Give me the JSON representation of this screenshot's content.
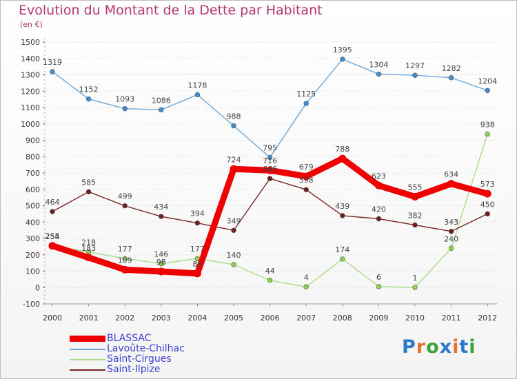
{
  "header": {
    "title": "Evolution du Montant de la Dette par Habitant",
    "subtitle": "(en €)"
  },
  "logo": {
    "text": "Proxiti",
    "colors": [
      "#2a7ac9",
      "#e7712a",
      "#3aa23a",
      "#2a7ac9",
      "#e7712a",
      "#2a7ac9",
      "#3aa23a"
    ]
  },
  "chart_data": {
    "type": "line",
    "title": "Evolution du Montant de la Dette par Habitant",
    "subtitle": "(en €)",
    "xlabel": "",
    "ylabel": "",
    "x": [
      "2000",
      "2001",
      "2002",
      "2003",
      "2004",
      "2005",
      "2006",
      "2007",
      "2008",
      "2009",
      "2010",
      "2011",
      "2012"
    ],
    "ylim": [
      -100,
      1500
    ],
    "yticks": [
      -100,
      0,
      100,
      200,
      300,
      400,
      500,
      600,
      700,
      800,
      900,
      1000,
      1100,
      1200,
      1300,
      1400,
      1500
    ],
    "grid": "horizontal",
    "legend_position": "bottom-left",
    "series": [
      {
        "name": "BLASSAC",
        "color": "#ee0000",
        "emphasis": true,
        "values": [
          255,
          183,
          109,
          98,
          86,
          724,
          716,
          679,
          788,
          623,
          555,
          634,
          573
        ]
      },
      {
        "name": "Lavoûte-Chilhac",
        "color": "#6fa6d6",
        "point_color": "#3f8fd2",
        "values": [
          1319,
          1152,
          1093,
          1086,
          1178,
          988,
          795,
          1125,
          1395,
          1304,
          1297,
          1282,
          1204
        ]
      },
      {
        "name": "Saint-Cirgues",
        "color": "#a8dc8a",
        "point_color": "#8ed44e",
        "values": [
          254,
          218,
          177,
          146,
          177,
          140,
          44,
          4,
          174,
          6,
          1,
          240,
          938
        ]
      },
      {
        "name": "Saint-Ilpize",
        "color": "#7a2323",
        "point_color": "#6e1c1c",
        "values": [
          464,
          585,
          499,
          434,
          394,
          349,
          666,
          598,
          439,
          420,
          382,
          343,
          450
        ]
      }
    ]
  }
}
